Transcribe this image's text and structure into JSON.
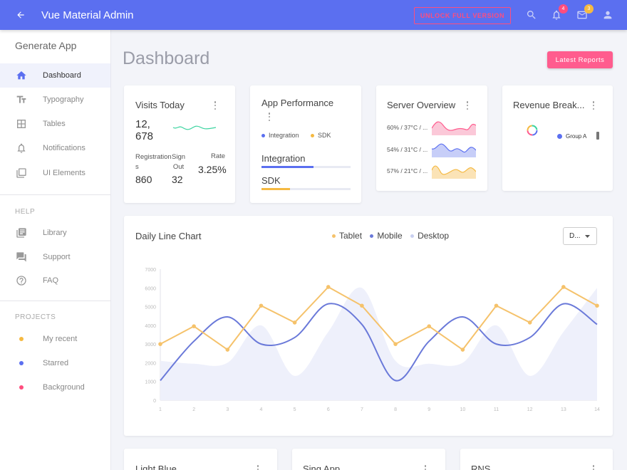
{
  "header": {
    "title": "Vue Material Admin",
    "unlock_label": "UNLOCK FULL VERSION",
    "notifications_count": "4",
    "messages_count": "3",
    "colors": {
      "bar": "#5b6ff0",
      "accent": "#ff4d7e",
      "badge_notif": "#ff4d7e",
      "badge_msg": "#f5b941"
    }
  },
  "sidebar": {
    "brand": "Generate App",
    "items": [
      {
        "label": "Dashboard",
        "icon": "home-icon"
      },
      {
        "label": "Typography",
        "icon": "typography-icon"
      },
      {
        "label": "Tables",
        "icon": "table-icon"
      },
      {
        "label": "Notifications",
        "icon": "bell-icon"
      },
      {
        "label": "UI Elements",
        "icon": "ui-elements-icon"
      }
    ],
    "help_label": "HELP",
    "help_items": [
      {
        "label": "Library",
        "icon": "library-icon"
      },
      {
        "label": "Support",
        "icon": "support-icon"
      },
      {
        "label": "FAQ",
        "icon": "faq-icon"
      }
    ],
    "projects_label": "PROJECTS",
    "projects": [
      {
        "label": "My recent",
        "color": "#f5b941"
      },
      {
        "label": "Starred",
        "color": "#5b6ff0"
      },
      {
        "label": "Background",
        "color": "#ff4d7e"
      }
    ]
  },
  "main": {
    "page_title": "Dashboard",
    "reports_label": "Latest Reports",
    "visits": {
      "title": "Visits Today",
      "value_line1": "12,",
      "value_line2": "678",
      "col1_label_1": "Registration",
      "col1_label_2": "s",
      "col1_value": "860",
      "col2_label_1": "Sign",
      "col2_label_2": "Out",
      "col2_value": "32",
      "col3_label": "Rate",
      "col3_value": "3.25%"
    },
    "performance": {
      "title": "App Performance",
      "legend": [
        "Integration",
        "SDK"
      ],
      "bars": [
        {
          "label": "Integration",
          "percent": 58,
          "color": "#5b6ff0"
        },
        {
          "label": "SDK",
          "percent": 32,
          "color": "#f5b941"
        }
      ]
    },
    "server": {
      "title": "Server Overview",
      "rows": [
        {
          "label": "60% / 37°C / ...",
          "color": "#ff5c8e"
        },
        {
          "label": "54% / 31°C / ...",
          "color": "#5b6ff0"
        },
        {
          "label": "57% / 21°C / ...",
          "color": "#f5b941"
        }
      ]
    },
    "revenue": {
      "title": "Revenue Break...",
      "legend_label": "Group A"
    },
    "bottom_cards": [
      "Light Blue",
      "Sing App",
      "RNS"
    ]
  },
  "chart_data": {
    "type": "line",
    "title": "Daily Line Chart",
    "legend": [
      {
        "name": "Tablet",
        "color": "#f5c26b"
      },
      {
        "name": "Mobile",
        "color": "#6a79d9"
      },
      {
        "name": "Desktop",
        "color": "#c9d0f0"
      }
    ],
    "select_value": "D...",
    "categories": [
      1,
      2,
      3,
      4,
      5,
      6,
      7,
      8,
      9,
      10,
      11,
      12,
      13,
      14
    ],
    "ylim": [
      0,
      7000
    ],
    "yticks": [
      0,
      1000,
      2000,
      3000,
      4000,
      5000,
      6000,
      7000
    ],
    "series": [
      {
        "name": "Tablet",
        "values": [
          3000,
          3950,
          2700,
          5050,
          4150,
          6050,
          5050,
          3000,
          3950,
          2700,
          5050,
          4150,
          6050,
          5050
        ]
      },
      {
        "name": "Mobile",
        "values": [
          1050,
          3150,
          4450,
          3000,
          3350,
          5150,
          4050,
          1050,
          3150,
          4450,
          3000,
          3350,
          5150,
          4050
        ]
      },
      {
        "name": "Desktop",
        "values": [
          2100,
          1950,
          2000,
          4000,
          1300,
          3650,
          6000,
          2100,
          1950,
          2000,
          4000,
          1300,
          3650,
          6000
        ]
      }
    ]
  }
}
